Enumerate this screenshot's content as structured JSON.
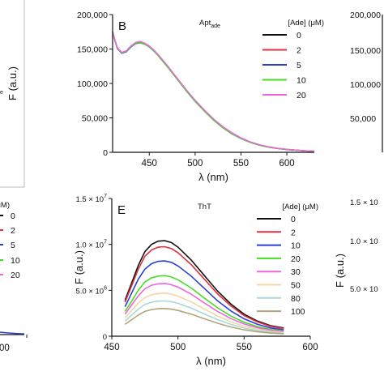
{
  "chart_data": [
    {
      "type": "line",
      "panel_label": "",
      "title": "",
      "legend_title": "[Ade] (μM)",
      "legend_entries": [
        "0",
        "2",
        "5",
        "10",
        "20"
      ],
      "xlabel": "",
      "ylabel": "",
      "xlim": [
        438,
        480
      ],
      "ylim": [
        0,
        0.3
      ],
      "x_ticks": [
        "00"
      ],
      "y_ticks": [],
      "series": [],
      "colors": [
        "#111111",
        "#e0303f",
        "#2a3fd8",
        "#44dd22",
        "#ee66dd"
      ]
    },
    {
      "type": "line",
      "panel_label": "B",
      "title": "Apt",
      "title_subscript": "ade",
      "legend_title": "[Ade] (μM)",
      "xlabel": "λ (nm)",
      "ylabel": "F (a.u.)",
      "xlim": [
        410,
        630
      ],
      "ylim": [
        0,
        200000
      ],
      "x_ticks": [
        "450",
        "500",
        "550",
        "600"
      ],
      "y_ticks": [
        "0",
        "50,000",
        "100,000",
        "150,000",
        "200,000"
      ],
      "x": [
        410,
        412,
        415,
        420,
        425,
        430,
        435,
        440,
        445,
        450,
        455,
        460,
        470,
        480,
        490,
        500,
        510,
        520,
        530,
        540,
        550,
        560,
        570,
        580,
        590,
        600,
        610,
        620,
        630
      ],
      "series": [
        {
          "name": "0",
          "color": "#111111",
          "values": [
            175000,
            165000,
            152000,
            144000,
            146000,
            153000,
            158000,
            159000,
            157000,
            153000,
            147000,
            140000,
            124000,
            107000,
            90000,
            74000,
            60000,
            47000,
            36000,
            27000,
            20000,
            14500,
            10500,
            7500,
            5500,
            4000,
            3000,
            2000,
            1500
          ]
        },
        {
          "name": "2",
          "color": "#e0303f",
          "values": [
            174000,
            164000,
            152000,
            145000,
            147000,
            154000,
            159000,
            160000,
            158000,
            154000,
            148000,
            141000,
            125000,
            108000,
            91000,
            75000,
            61000,
            48000,
            37000,
            28000,
            20500,
            15000,
            11000,
            8000,
            5800,
            4200,
            3100,
            2200,
            1600
          ]
        },
        {
          "name": "5",
          "color": "#2a3fd8",
          "values": [
            175000,
            165000,
            151000,
            144000,
            146000,
            153000,
            158000,
            159500,
            157500,
            153500,
            147500,
            140500,
            124500,
            107500,
            90500,
            74500,
            60500,
            47500,
            36500,
            27500,
            20000,
            14800,
            10800,
            7700,
            5600,
            4100,
            3000,
            2100,
            1500
          ]
        },
        {
          "name": "10",
          "color": "#44dd22",
          "values": [
            174500,
            164500,
            151500,
            144500,
            146500,
            153500,
            158500,
            159000,
            157000,
            153000,
            147000,
            140000,
            124000,
            107000,
            90000,
            74000,
            60000,
            47000,
            36000,
            27000,
            20000,
            14500,
            10500,
            7500,
            5500,
            4000,
            3000,
            2000,
            1500
          ]
        },
        {
          "name": "20",
          "color": "#ee66dd",
          "values": [
            175000,
            165500,
            152500,
            145000,
            147500,
            154500,
            159500,
            161000,
            158500,
            154500,
            148500,
            141500,
            125500,
            108500,
            91500,
            75500,
            61500,
            48500,
            37500,
            28500,
            21000,
            15200,
            11000,
            8000,
            5800,
            4200,
            3100,
            2200,
            1600
          ]
        }
      ]
    },
    {
      "type": "line",
      "panel_label": "",
      "xlabel": "",
      "ylabel": "",
      "y_ticks": [
        "200,000",
        "150,000",
        "100,000",
        "50,000"
      ],
      "series": []
    },
    {
      "type": "line",
      "panel_label": "E",
      "title": "ThT",
      "legend_title": "[Ade] (μM)",
      "xlabel": "λ (nm)",
      "ylabel": "F (a.u.)",
      "xlim": [
        450,
        600
      ],
      "ylim": [
        0,
        15000000
      ],
      "x_ticks": [
        "450",
        "500",
        "550",
        "600"
      ],
      "y_ticks": [
        {
          "value": 0,
          "label": "0",
          "exp": ""
        },
        {
          "value": 5000000,
          "label": "5.0 × 10",
          "exp": "6"
        },
        {
          "value": 10000000,
          "label": "1.0 × 10",
          "exp": "7"
        },
        {
          "value": 15000000,
          "label": "1.5 × 10",
          "exp": "7"
        }
      ],
      "x": [
        460,
        465,
        470,
        475,
        480,
        485,
        490,
        495,
        500,
        510,
        520,
        530,
        540,
        550,
        560,
        570,
        580
      ],
      "series": [
        {
          "name": "0",
          "color": "#111111",
          "values": [
            3900000,
            5800000,
            7700000,
            9200000,
            10000000,
            10350000,
            10400000,
            10200000,
            9700000,
            8300000,
            6600000,
            4900000,
            3500000,
            2400000,
            1650000,
            1150000,
            900000
          ]
        },
        {
          "name": "2",
          "color": "#e0303f",
          "values": [
            3700000,
            5500000,
            7300000,
            8700000,
            9400000,
            9700000,
            9750000,
            9550000,
            9100000,
            7800000,
            6200000,
            4600000,
            3300000,
            2250000,
            1550000,
            1080000,
            850000
          ]
        },
        {
          "name": "10",
          "color": "#2a3fd8",
          "values": [
            3200000,
            4700000,
            6200000,
            7300000,
            7900000,
            8150000,
            8200000,
            8050000,
            7650000,
            6550000,
            5200000,
            3850000,
            2750000,
            1900000,
            1300000,
            900000,
            700000
          ]
        },
        {
          "name": "20",
          "color": "#44dd22",
          "values": [
            2700000,
            3800000,
            5000000,
            5900000,
            6350000,
            6550000,
            6600000,
            6450000,
            6150000,
            5250000,
            4150000,
            3080000,
            2200000,
            1520000,
            1050000,
            730000,
            560000
          ]
        },
        {
          "name": "30",
          "color": "#ee66dd",
          "values": [
            2400000,
            3400000,
            4400000,
            5150000,
            5550000,
            5700000,
            5750000,
            5600000,
            5350000,
            4580000,
            3620000,
            2690000,
            1920000,
            1330000,
            920000,
            640000,
            490000
          ]
        },
        {
          "name": "50",
          "color": "#f2d8a8",
          "values": [
            2000000,
            2800000,
            3600000,
            4200000,
            4520000,
            4650000,
            4700000,
            4580000,
            4370000,
            3740000,
            2960000,
            2200000,
            1570000,
            1090000,
            750000,
            520000,
            400000
          ]
        },
        {
          "name": "80",
          "color": "#a9d9d2",
          "values": [
            1650000,
            2300000,
            2950000,
            3450000,
            3700000,
            3820000,
            3850000,
            3760000,
            3580000,
            3060000,
            2420000,
            1800000,
            1290000,
            890000,
            620000,
            430000,
            330000
          ]
        },
        {
          "name": "100",
          "color": "#b3a578",
          "values": [
            1300000,
            1800000,
            2300000,
            2700000,
            2900000,
            2990000,
            3020000,
            2950000,
            2810000,
            2400000,
            1900000,
            1410000,
            1010000,
            700000,
            480000,
            340000,
            260000
          ]
        }
      ]
    },
    {
      "type": "line",
      "panel_label": "",
      "y_ticks": [
        {
          "label": "1.5 × 10",
          "exp": ""
        },
        {
          "label": "1.0 × 10",
          "exp": ""
        },
        {
          "label": "5.0 × 10",
          "exp": ""
        }
      ],
      "series": []
    }
  ],
  "fragments": {
    "left_panel_letter": "e",
    "right_bottom_f": "F (a.u.)"
  }
}
